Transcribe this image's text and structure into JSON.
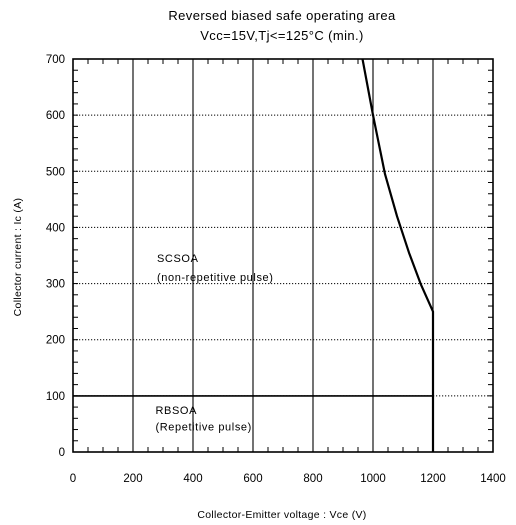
{
  "chart_data": {
    "type": "line",
    "title": "Reversed biased safe operating area",
    "subtitle": "Vcc=15V,Tj<=125°C (min.)",
    "xlabel": "Collector-Emitter voltage : Vce (V)",
    "ylabel": "Collector current : Ic (A)",
    "xlim": [
      0,
      1400
    ],
    "ylim": [
      0,
      700
    ],
    "x_ticks": [
      0,
      200,
      400,
      600,
      800,
      1000,
      1200,
      1400
    ],
    "y_ticks": [
      0,
      100,
      200,
      300,
      400,
      500,
      600,
      700
    ],
    "grid": {
      "vertical": "solid",
      "horizontal": "dotted"
    },
    "series": [
      {
        "name": "SCSOA",
        "x": [
          965,
          1000,
          1040,
          1080,
          1120,
          1160,
          1200,
          1200
        ],
        "y": [
          700,
          600,
          495,
          420,
          355,
          298,
          250,
          0
        ]
      },
      {
        "name": "RBSOA",
        "x": [
          0,
          1200,
          1200
        ],
        "y": [
          100,
          100,
          0
        ]
      }
    ],
    "annotations": [
      {
        "text": "SCSOA",
        "x": 280,
        "y": 338
      },
      {
        "text": "(non-repetitive pulse)",
        "x": 280,
        "y": 305
      },
      {
        "text": "RBSOA",
        "x": 275,
        "y": 68
      },
      {
        "text": "(Repetitive pulse)",
        "x": 275,
        "y": 38
      }
    ]
  }
}
